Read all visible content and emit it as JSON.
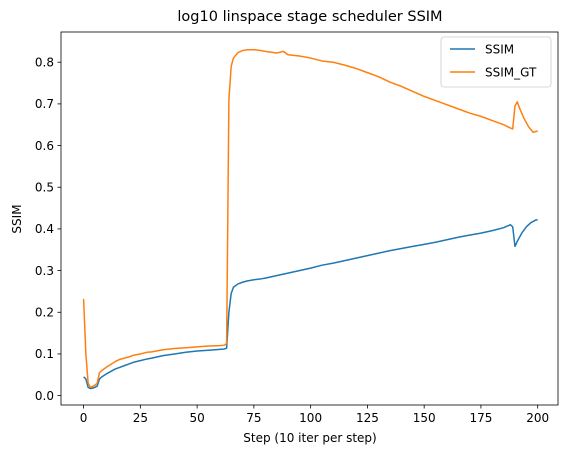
{
  "chart_data": {
    "type": "line",
    "title": "log10 linspace stage scheduler SSIM",
    "xlabel": "Step (10 iter per step)",
    "ylabel": "SSIM",
    "xlim": [
      -9.95,
      208.95
    ],
    "ylim": [
      -0.0225,
      0.8725
    ],
    "xticks": [
      0,
      25,
      50,
      75,
      100,
      125,
      150,
      175,
      200
    ],
    "xtick_labels": [
      "0",
      "25",
      "50",
      "75",
      "100",
      "125",
      "150",
      "175",
      "200"
    ],
    "yticks": [
      0.0,
      0.1,
      0.2,
      0.3,
      0.4,
      0.5,
      0.6,
      0.7,
      0.8
    ],
    "ytick_labels": [
      "0.0",
      "0.1",
      "0.2",
      "0.3",
      "0.4",
      "0.5",
      "0.6",
      "0.7",
      "0.8"
    ],
    "grid": false,
    "legend": "top-right",
    "series": [
      {
        "name": "SSIM",
        "color": "#1f77b4",
        "points": [
          [
            0,
            0.045
          ],
          [
            1,
            0.04
          ],
          [
            2,
            0.02
          ],
          [
            3,
            0.017
          ],
          [
            4,
            0.018
          ],
          [
            5,
            0.02
          ],
          [
            6,
            0.023
          ],
          [
            7,
            0.04
          ],
          [
            8,
            0.045
          ],
          [
            10,
            0.052
          ],
          [
            12,
            0.058
          ],
          [
            14,
            0.064
          ],
          [
            16,
            0.068
          ],
          [
            18,
            0.072
          ],
          [
            20,
            0.076
          ],
          [
            22,
            0.08
          ],
          [
            25,
            0.084
          ],
          [
            28,
            0.088
          ],
          [
            30,
            0.09
          ],
          [
            35,
            0.096
          ],
          [
            40,
            0.1
          ],
          [
            45,
            0.104
          ],
          [
            50,
            0.107
          ],
          [
            55,
            0.109
          ],
          [
            60,
            0.111
          ],
          [
            62,
            0.112
          ],
          [
            63,
            0.114
          ],
          [
            64,
            0.2
          ],
          [
            65,
            0.245
          ],
          [
            66,
            0.26
          ],
          [
            68,
            0.268
          ],
          [
            70,
            0.272
          ],
          [
            72,
            0.275
          ],
          [
            75,
            0.278
          ],
          [
            78,
            0.28
          ],
          [
            80,
            0.282
          ],
          [
            85,
            0.288
          ],
          [
            90,
            0.294
          ],
          [
            95,
            0.3
          ],
          [
            100,
            0.306
          ],
          [
            105,
            0.313
          ],
          [
            110,
            0.318
          ],
          [
            115,
            0.324
          ],
          [
            120,
            0.33
          ],
          [
            125,
            0.336
          ],
          [
            130,
            0.342
          ],
          [
            135,
            0.348
          ],
          [
            140,
            0.353
          ],
          [
            145,
            0.358
          ],
          [
            150,
            0.363
          ],
          [
            155,
            0.368
          ],
          [
            160,
            0.374
          ],
          [
            165,
            0.38
          ],
          [
            170,
            0.385
          ],
          [
            175,
            0.39
          ],
          [
            180,
            0.396
          ],
          [
            185,
            0.403
          ],
          [
            188,
            0.41
          ],
          [
            189,
            0.405
          ],
          [
            190,
            0.358
          ],
          [
            191,
            0.37
          ],
          [
            193,
            0.39
          ],
          [
            195,
            0.405
          ],
          [
            197,
            0.415
          ],
          [
            199,
            0.421
          ],
          [
            200,
            0.422
          ]
        ]
      },
      {
        "name": "SSIM_GT",
        "color": "#ff7f0e",
        "points": [
          [
            0,
            0.232
          ],
          [
            1,
            0.1
          ],
          [
            2,
            0.03
          ],
          [
            3,
            0.02
          ],
          [
            4,
            0.022
          ],
          [
            5,
            0.025
          ],
          [
            6,
            0.03
          ],
          [
            7,
            0.055
          ],
          [
            8,
            0.06
          ],
          [
            10,
            0.068
          ],
          [
            12,
            0.075
          ],
          [
            14,
            0.082
          ],
          [
            16,
            0.087
          ],
          [
            18,
            0.09
          ],
          [
            20,
            0.093
          ],
          [
            22,
            0.097
          ],
          [
            25,
            0.1
          ],
          [
            28,
            0.104
          ],
          [
            30,
            0.105
          ],
          [
            35,
            0.11
          ],
          [
            40,
            0.113
          ],
          [
            45,
            0.115
          ],
          [
            50,
            0.117
          ],
          [
            55,
            0.119
          ],
          [
            60,
            0.12
          ],
          [
            62,
            0.121
          ],
          [
            63,
            0.125
          ],
          [
            64,
            0.71
          ],
          [
            65,
            0.79
          ],
          [
            66,
            0.81
          ],
          [
            68,
            0.823
          ],
          [
            70,
            0.828
          ],
          [
            72,
            0.83
          ],
          [
            75,
            0.83
          ],
          [
            78,
            0.828
          ],
          [
            80,
            0.826
          ],
          [
            85,
            0.822
          ],
          [
            88,
            0.826
          ],
          [
            90,
            0.818
          ],
          [
            95,
            0.815
          ],
          [
            100,
            0.81
          ],
          [
            105,
            0.803
          ],
          [
            110,
            0.8
          ],
          [
            115,
            0.793
          ],
          [
            120,
            0.785
          ],
          [
            125,
            0.775
          ],
          [
            130,
            0.765
          ],
          [
            135,
            0.752
          ],
          [
            140,
            0.742
          ],
          [
            145,
            0.73
          ],
          [
            150,
            0.718
          ],
          [
            155,
            0.708
          ],
          [
            160,
            0.698
          ],
          [
            165,
            0.688
          ],
          [
            170,
            0.678
          ],
          [
            175,
            0.67
          ],
          [
            180,
            0.66
          ],
          [
            185,
            0.65
          ],
          [
            188,
            0.642
          ],
          [
            189,
            0.64
          ],
          [
            190,
            0.695
          ],
          [
            191,
            0.705
          ],
          [
            192,
            0.69
          ],
          [
            194,
            0.665
          ],
          [
            196,
            0.645
          ],
          [
            198,
            0.632
          ],
          [
            200,
            0.635
          ]
        ]
      }
    ]
  }
}
